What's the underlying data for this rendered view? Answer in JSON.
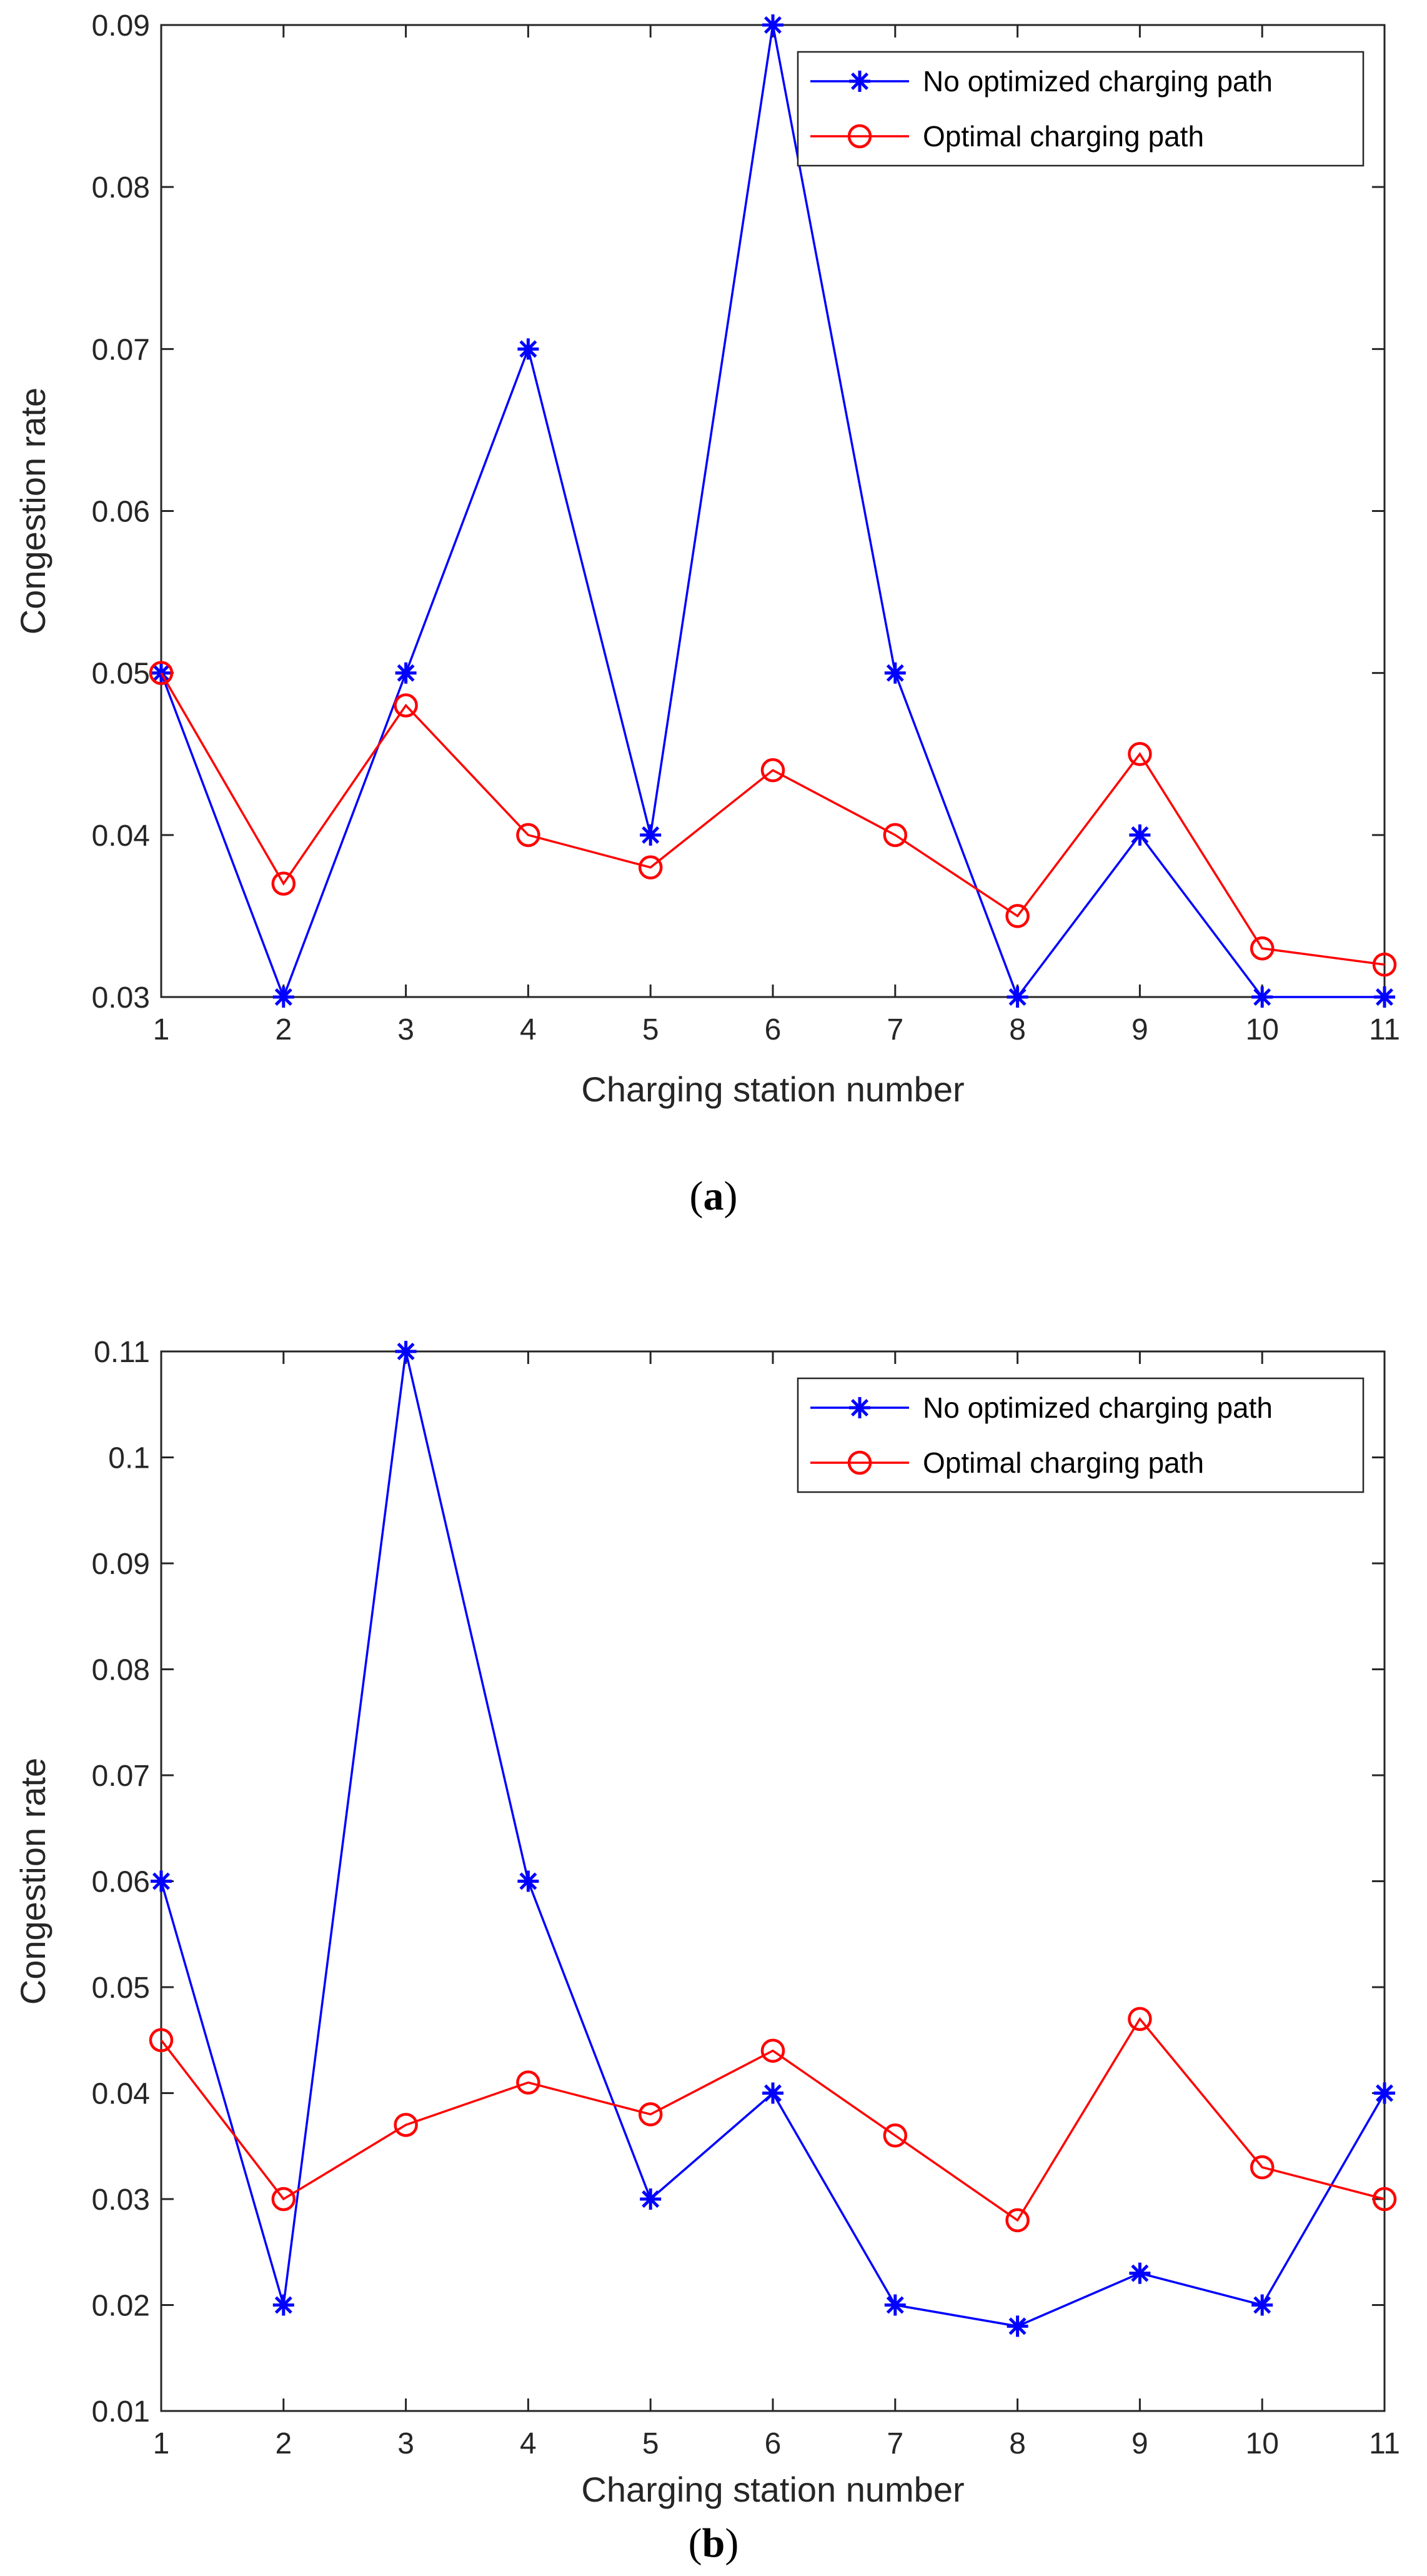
{
  "figure": {
    "colors": {
      "series_no_opt": "#0000ff",
      "series_opt": "#ff0000",
      "axis": "#262626"
    }
  },
  "chart_data": [
    {
      "type": "line",
      "caption_open": "(",
      "caption_letter": "a",
      "caption_close": ")",
      "xlabel": "Charging station number",
      "ylabel": "Congestion rate",
      "xlim": [
        1,
        11
      ],
      "ylim": [
        0.03,
        0.09
      ],
      "xticks": [
        1,
        2,
        3,
        4,
        5,
        6,
        7,
        8,
        9,
        10,
        11
      ],
      "yticks": [
        "0.03",
        "0.04",
        "0.05",
        "0.06",
        "0.07",
        "0.08",
        "0.09"
      ],
      "ytick_values": [
        0.03,
        0.04,
        0.05,
        0.06,
        0.07,
        0.08,
        0.09
      ],
      "legend_position": "top-right",
      "x": [
        1,
        2,
        3,
        4,
        5,
        6,
        7,
        8,
        9,
        10,
        11
      ],
      "series": [
        {
          "name": "No optimized charging path",
          "marker": "asterisk",
          "color": "#0000ff",
          "values": [
            0.05,
            0.03,
            0.05,
            0.07,
            0.04,
            0.09,
            0.05,
            0.03,
            0.04,
            0.03,
            0.03
          ]
        },
        {
          "name": "Optimal charging path",
          "marker": "circle",
          "color": "#ff0000",
          "values": [
            0.05,
            0.037,
            0.048,
            0.04,
            0.038,
            0.044,
            0.04,
            0.035,
            0.045,
            0.033,
            0.032
          ]
        }
      ]
    },
    {
      "type": "line",
      "caption_open": "(",
      "caption_letter": "b",
      "caption_close": ")",
      "xlabel": "Charging station number",
      "ylabel": "Congestion rate",
      "xlim": [
        1,
        11
      ],
      "ylim": [
        0.01,
        0.11
      ],
      "xticks": [
        1,
        2,
        3,
        4,
        5,
        6,
        7,
        8,
        9,
        10,
        11
      ],
      "yticks": [
        "0.01",
        "0.02",
        "0.03",
        "0.04",
        "0.05",
        "0.06",
        "0.07",
        "0.08",
        "0.09",
        "0.1",
        "0.11"
      ],
      "ytick_values": [
        0.01,
        0.02,
        0.03,
        0.04,
        0.05,
        0.06,
        0.07,
        0.08,
        0.09,
        0.1,
        0.11
      ],
      "legend_position": "top-right",
      "x": [
        1,
        2,
        3,
        4,
        5,
        6,
        7,
        8,
        9,
        10,
        11
      ],
      "series": [
        {
          "name": "No optimized charging path",
          "marker": "asterisk",
          "color": "#0000ff",
          "values": [
            0.06,
            0.02,
            0.11,
            0.06,
            0.03,
            0.04,
            0.02,
            0.018,
            0.023,
            0.02,
            0.04
          ]
        },
        {
          "name": "Optimal charging path",
          "marker": "circle",
          "color": "#ff0000",
          "values": [
            0.045,
            0.03,
            0.037,
            0.041,
            0.038,
            0.044,
            0.036,
            0.028,
            0.047,
            0.033,
            0.03
          ]
        }
      ]
    }
  ]
}
